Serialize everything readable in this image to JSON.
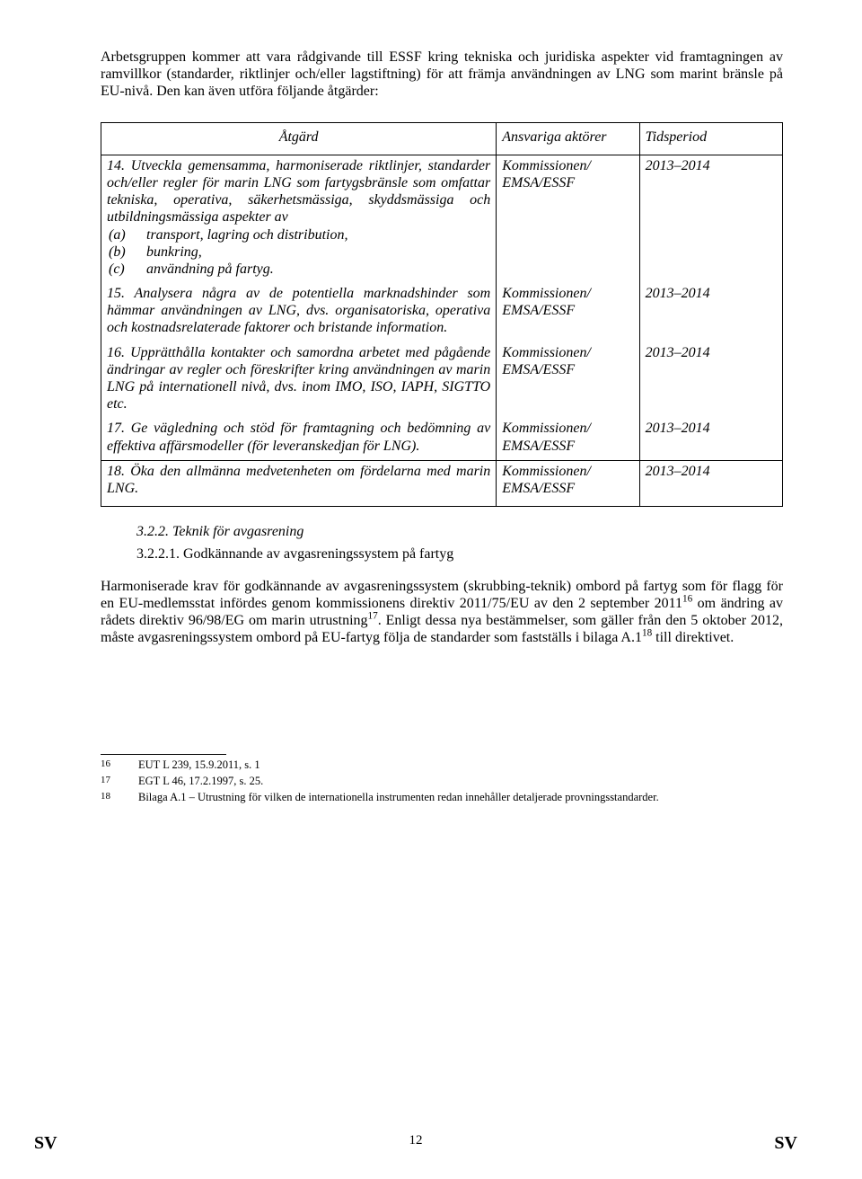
{
  "intro": "Arbetsgruppen kommer att vara rådgivande till ESSF kring tekniska och juridiska aspekter vid framtagningen av ramvillkor (standarder, riktlinjer och/eller lagstiftning) för att främja användningen av LNG som marint bränsle på EU-nivå. Den kan även utföra följande åtgärder:",
  "table": {
    "headers": {
      "c1": "Åtgärd",
      "c2": "Ansvariga aktörer",
      "c3": "Tidsperiod"
    },
    "rows": [
      {
        "action_html": "<em>14. Utveckla gemensamma, harmoniserade riktlinjer, standarder och/eller regler för marin LNG som fartygsbränsle som omfattar tekniska, operativa, säkerhetsmässiga, skyddsmässiga och utbildningsmässiga aspekter av</em><div class=\"sub-list\"><div class=\"row\"><span class=\"lbl\">(a)</span><span>transport, lagring och distribution,</span></div><div class=\"row\"><span class=\"lbl\">(b)</span><span>bunkring,</span></div><div class=\"row\"><span class=\"lbl\">(c)</span><span>användning på fartyg.</span></div></div>",
        "actors": "Kommissionen/ EMSA/ESSF",
        "period": "2013–2014"
      },
      {
        "action_html": "<em>15. Analysera några av de potentiella marknadshinder som hämmar användningen av LNG, dvs. organisatoriska, operativa och kostnadsrelaterade faktorer och bristande information.</em>",
        "actors": "Kommissionen/ EMSA/ESSF",
        "period": "2013–2014"
      },
      {
        "action_html": "<em>16. Upprätthålla kontakter och samordna arbetet med pågående ändringar av regler och föreskrifter kring användningen av marin LNG på internationell nivå, dvs. inom IMO, ISO, IAPH, SIGTTO etc.</em>",
        "actors": "Kommissionen/ EMSA/ESSF",
        "period": "2013–2014"
      },
      {
        "action_html": "<em>17. Ge vägledning och stöd för framtagning och bedömning av effektiva affärsmodeller (för leveranskedjan för LNG).</em>",
        "actors": "Kommissionen/ EMSA/ESSF",
        "period": "2013–2014"
      },
      {
        "action_html": "<em>18. Öka den allmänna medvetenheten om fördelarna med marin LNG.</em>",
        "actors": "Kommissionen/ EMSA/ESSF",
        "period": "2013–2014",
        "last": true
      }
    ]
  },
  "sec_heading": "3.2.2.    Teknik för avgasrening",
  "sub_heading": "3.2.2.1.  Godkännande av avgasreningssystem på fartyg",
  "body_html": "Harmoniserade krav för godkännande av avgasreningssystem (skrubbing-teknik) ombord på fartyg som för flagg för en EU-medlemsstat infördes genom kommissionens direktiv 2011/75/EU av den 2 september 2011<sup>16</sup> om ändring av rådets direktiv 96/98/EG om marin utrustning<sup>17</sup>. Enligt dessa nya bestämmelser, som gäller från den 5 oktober 2012, måste avgasreningssystem ombord på EU-fartyg följa de standarder som fastställs i bilaga A.1<sup>18</sup> till direktivet.",
  "footnotes": [
    {
      "num": "16",
      "text": "EUT L 239, 15.9.2011, s. 1"
    },
    {
      "num": "17",
      "text": "EGT L 46, 17.2.1997, s. 25."
    },
    {
      "num": "18",
      "text": "Bilaga A.1 – Utrustning för vilken de internationella instrumenten redan innehåller detaljerade provningsstandarder."
    }
  ],
  "footer": {
    "left": "SV",
    "page": "12",
    "right": "SV"
  }
}
